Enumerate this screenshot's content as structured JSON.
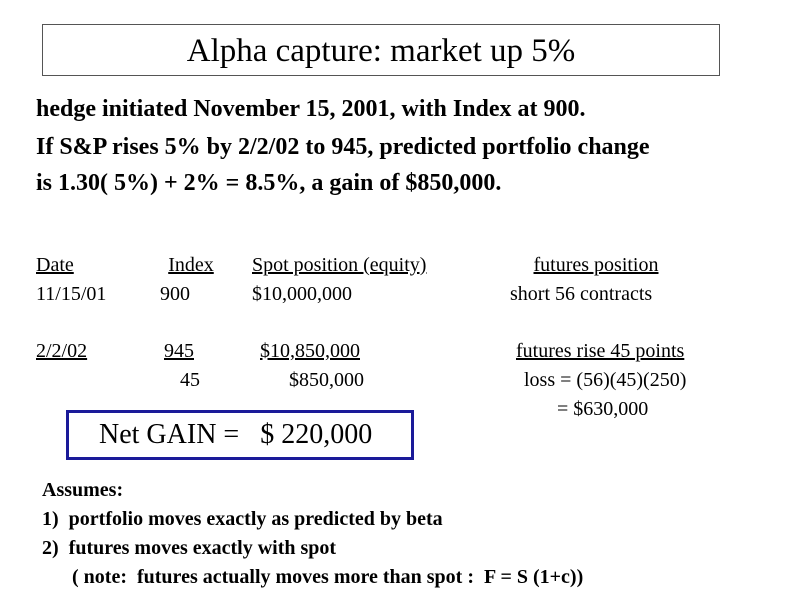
{
  "title": "Alpha capture: market up 5%",
  "intro": {
    "line1": "hedge initiated November 15, 2001, with Index at 900.",
    "line2": "If S&P rises 5% by 2/2/02 to 945, predicted portfolio change",
    "line3": "is 1.30( 5%) + 2% = 8.5%, a gain of $850,000."
  },
  "table": {
    "headers": {
      "date": "Date",
      "index": "Index",
      "spot": "Spot position (equity)",
      "futures": "futures position"
    },
    "row1": {
      "date": "11/15/01",
      "index": "900",
      "spot": "$10,000,000",
      "futures": "short 56 contracts"
    },
    "row2": {
      "date": "2/2/02",
      "index": "945",
      "spot": "$10,850,000",
      "futures": "futures rise 45 points"
    },
    "row3": {
      "index": "45",
      "spot": "$850,000",
      "futures": "loss = (56)(45)(250)"
    },
    "row4": {
      "futures": "= $630,000"
    }
  },
  "net_gain": "Net GAIN =   $ 220,000",
  "notes": {
    "heading": "Assumes:",
    "item1": "1)  portfolio moves exactly as predicted by beta",
    "item2": "2)  futures moves exactly with spot",
    "item3": "( note:  futures actually moves more than spot :  F = S (1+c))"
  },
  "colors": {
    "net_box_border": "#1a1a99",
    "title_box_border": "#555555"
  }
}
